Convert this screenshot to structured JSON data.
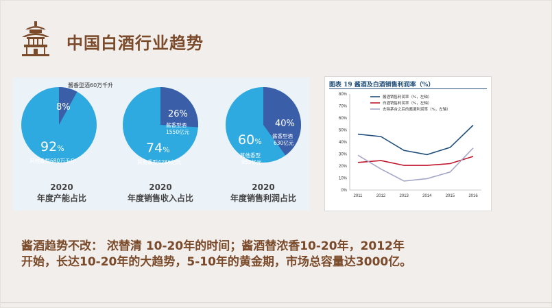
{
  "title": "中国白酒行业趋势",
  "pies": [
    {
      "main_pct": "92",
      "main_label": "其他香型680万千升",
      "minor_pct": "8%",
      "minor_label": "酱香型酒60万千升",
      "year": "2020",
      "caption": "年度产能占比",
      "minor_fraction": 0.08
    },
    {
      "main_pct": "74",
      "main_label": "其他香型4286亿元",
      "minor_pct": "26%",
      "minor_label_1": "酱香型酒",
      "minor_label_2": "1550亿元",
      "year": "2020",
      "caption": "年度销售收入占比",
      "minor_fraction": 0.26
    },
    {
      "main_pct": "60",
      "main_label_1": "其他香型",
      "main_label_2": "955亿元",
      "minor_pct": "40%",
      "minor_label_1": "酱香型酒",
      "minor_label_2": "630亿元",
      "year": "2020",
      "caption": "年度销售利润占比",
      "minor_fraction": 0.4
    }
  ],
  "percent_sign": "%",
  "chart_title": "图表 19   酱酒及白酒销售利润率（%）",
  "chart_data": {
    "type": "line",
    "x": [
      "2011",
      "2012",
      "2013",
      "2014",
      "2015",
      "2016"
    ],
    "ylim": [
      0,
      80
    ],
    "yticks": [
      "0%",
      "10%",
      "20%",
      "30%",
      "40%",
      "50%",
      "60%",
      "70%",
      "80%"
    ],
    "series": [
      {
        "name": "酱酒销售利润率（%，左轴）",
        "color": "#1f4e79",
        "values": [
          46.5,
          44.5,
          33,
          29.5,
          35.5,
          54
        ]
      },
      {
        "name": "白酒销售利润率（%，左轴）",
        "color": "#c0142b",
        "values": [
          23,
          24.5,
          20.5,
          20.5,
          22,
          28
        ]
      },
      {
        "name": "去除茅台之后的酱酒利润率（%，左轴）",
        "color": "#a5a7c8",
        "values": [
          29,
          17.5,
          7.5,
          9.5,
          15,
          35
        ]
      }
    ]
  },
  "paragraph_1": "酱酒趋势不改： 浓替清  10-20年的时间；酱酒替浓香10-20年，2012年",
  "paragraph_2": "开始，长达10-20年的大趋势，5-10年的黄金期，市场总容量达3000亿。"
}
